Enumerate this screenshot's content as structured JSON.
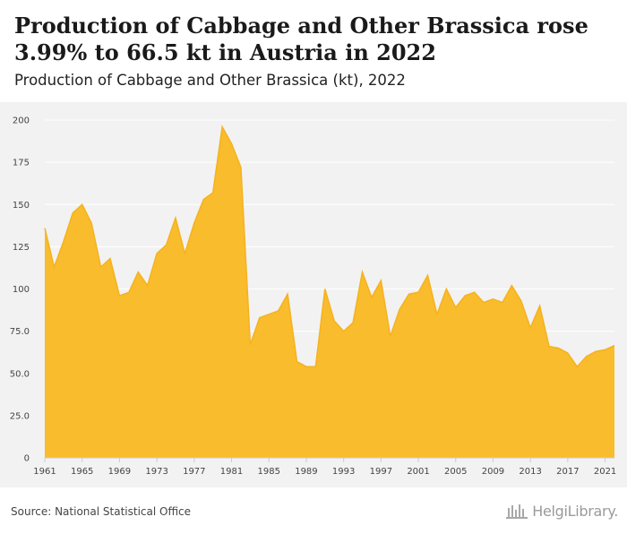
{
  "header": {
    "title": "Production of Cabbage and Other Brassica rose 3.99% to 66.5 kt in Austria in 2022",
    "subtitle": "Production of Cabbage and Other Brassica (kt), 2022"
  },
  "footer": {
    "source": "Source: National Statistical Office",
    "brand": "HelgiLibrary."
  },
  "colors": {
    "area_fill": "#f9bc2c",
    "area_stroke": "#f5b21f",
    "plot_background": "#f2f2f2",
    "grid": "#ffffff"
  },
  "chart_data": {
    "type": "area",
    "title": "Production of Cabbage and Other Brassica (kt), 2022",
    "xlabel": "",
    "ylabel": "",
    "x": [
      1961,
      1962,
      1963,
      1964,
      1965,
      1966,
      1967,
      1968,
      1969,
      1970,
      1971,
      1972,
      1973,
      1974,
      1975,
      1976,
      1977,
      1978,
      1979,
      1980,
      1981,
      1982,
      1983,
      1984,
      1985,
      1986,
      1987,
      1988,
      1989,
      1990,
      1991,
      1992,
      1993,
      1994,
      1995,
      1996,
      1997,
      1998,
      1999,
      2000,
      2001,
      2002,
      2003,
      2004,
      2005,
      2006,
      2007,
      2008,
      2009,
      2010,
      2011,
      2012,
      2013,
      2014,
      2015,
      2016,
      2017,
      2018,
      2019,
      2020,
      2021,
      2022
    ],
    "series": [
      {
        "values": [
          136,
          113,
          128,
          145,
          150,
          139,
          113,
          118,
          96,
          98,
          110,
          102,
          121,
          126,
          142,
          121,
          139,
          153,
          157,
          196,
          186,
          172,
          67,
          83,
          85,
          87,
          97,
          57,
          54,
          54,
          100,
          81,
          75,
          80,
          110,
          95,
          105,
          72,
          88,
          97,
          98,
          108,
          85,
          100,
          89,
          96,
          98,
          92,
          94,
          92,
          102,
          93,
          77,
          90,
          66,
          65,
          62,
          54,
          60,
          63,
          64,
          66.5
        ]
      }
    ],
    "ylim": [
      0,
      200
    ],
    "y_ticks": [
      "0",
      "25.0",
      "50.0",
      "75.0",
      "100",
      "125",
      "150",
      "175",
      "200"
    ],
    "y_tick_values": [
      0,
      25,
      50,
      75,
      100,
      125,
      150,
      175,
      200
    ],
    "x_ticks": [
      "1961",
      "1965",
      "1969",
      "1973",
      "1977",
      "1981",
      "1985",
      "1989",
      "1993",
      "1997",
      "2001",
      "2005",
      "2009",
      "2013",
      "2017",
      "2021"
    ],
    "x_tick_values": [
      1961,
      1965,
      1969,
      1973,
      1977,
      1981,
      1985,
      1989,
      1993,
      1997,
      2001,
      2005,
      2009,
      2013,
      2017,
      2021
    ],
    "grid": true
  }
}
